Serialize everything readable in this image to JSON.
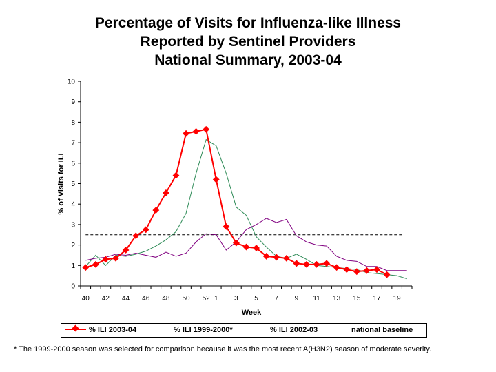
{
  "chart_data": {
    "type": "line",
    "title_lines": [
      "Percentage of Visits for Influenza-like Illness",
      "Reported by Sentinel Providers",
      "National Summary, 2003-04"
    ],
    "xlabel": "Week",
    "ylabel": "% of Visits for ILI",
    "ylim": [
      0,
      10
    ],
    "y_ticks": [
      "0",
      "1",
      "2",
      "3",
      "4",
      "5",
      "6",
      "7",
      "8",
      "9",
      "10"
    ],
    "x_weeks": [
      "40",
      "41",
      "42",
      "43",
      "44",
      "45",
      "46",
      "47",
      "48",
      "49",
      "50",
      "51",
      "52",
      "1",
      "2",
      "3",
      "4",
      "5",
      "6",
      "7",
      "8",
      "9",
      "10",
      "11",
      "12",
      "13",
      "14",
      "15",
      "16",
      "17",
      "18",
      "19",
      "20"
    ],
    "x_tick_labels": [
      "40",
      "42",
      "44",
      "46",
      "48",
      "50",
      "52",
      "1",
      "3",
      "5",
      "7",
      "9",
      "11",
      "13",
      "15",
      "17",
      "19"
    ],
    "series": [
      {
        "name": "% ILI 2003-04",
        "color": "#ff0000",
        "marker": "diamond",
        "values": [
          0.9,
          1.05,
          1.3,
          1.35,
          1.75,
          2.45,
          2.75,
          3.7,
          4.55,
          5.4,
          7.45,
          7.55,
          7.65,
          5.2,
          2.9,
          2.1,
          1.9,
          1.85,
          1.45,
          1.4,
          1.35,
          1.1,
          1.05,
          1.05,
          1.1,
          0.9,
          0.8,
          0.7,
          0.75,
          0.8,
          0.55
        ]
      },
      {
        "name": "% ILI 1999-2000*",
        "color": "#2e8b57",
        "marker": "none",
        "values": [
          0.95,
          1.5,
          1.0,
          1.5,
          1.45,
          1.55,
          1.7,
          1.95,
          2.25,
          2.65,
          3.55,
          5.5,
          7.15,
          6.85,
          5.5,
          3.85,
          3.45,
          2.4,
          1.9,
          1.45,
          1.35,
          1.55,
          1.3,
          1.0,
          0.95,
          0.9,
          0.85,
          0.8,
          0.65,
          0.6,
          0.55,
          0.5,
          0.35
        ]
      },
      {
        "name": "% ILI 2002-03",
        "color": "#800080",
        "marker": "none",
        "values": [
          1.25,
          1.35,
          1.4,
          1.55,
          1.5,
          1.6,
          1.5,
          1.4,
          1.65,
          1.45,
          1.6,
          2.15,
          2.55,
          2.5,
          1.75,
          2.15,
          2.75,
          3.0,
          3.3,
          3.1,
          3.25,
          2.45,
          2.15,
          2.0,
          1.95,
          1.45,
          1.25,
          1.2,
          0.95,
          0.95,
          0.75,
          0.75,
          0.75
        ]
      }
    ],
    "baseline": {
      "name": "national baseline",
      "value": 2.5,
      "color": "#000000"
    }
  },
  "legend": {
    "items": [
      "% ILI 2003-04",
      "% ILI 1999-2000*",
      "% ILI 2002-03",
      "national baseline"
    ]
  },
  "footnote": "* The 1999-2000 season was selected for comparison because it was the most recent A(H3N2) season of moderate severity."
}
